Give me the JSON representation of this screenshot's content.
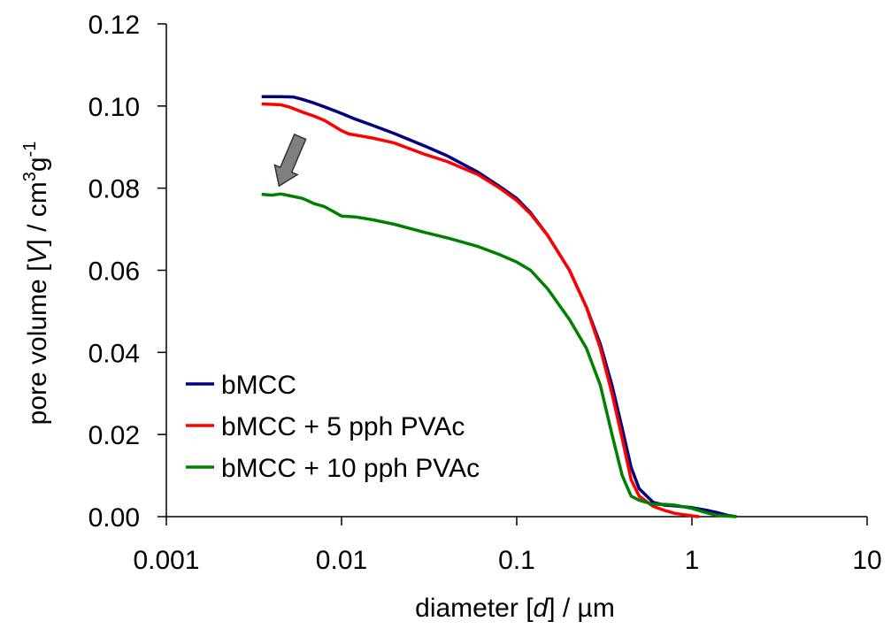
{
  "chart_data": {
    "type": "line",
    "xscale": "log",
    "xlim": [
      0.001,
      10
    ],
    "ylim": [
      0.0,
      0.12
    ],
    "grid": false,
    "x_ticks": [
      0.001,
      0.01,
      0.1,
      1,
      10
    ],
    "x_tick_labels": [
      "0.001",
      "0.01",
      "0.1",
      "1",
      "10"
    ],
    "y_ticks": [
      0.0,
      0.02,
      0.04,
      0.06,
      0.08,
      0.1,
      0.12
    ],
    "y_tick_labels": [
      "0.00",
      "0.02",
      "0.04",
      "0.06",
      "0.08",
      "0.10",
      "0.12"
    ],
    "xlabel": {
      "prefix": "diameter [",
      "var": "d",
      "suffix": "] / µm"
    },
    "ylabel": {
      "prefix": "pore volume [",
      "var": "V",
      "mid": "] / cm",
      "sup1": "3",
      "base2": "g",
      "sup2": "-1"
    },
    "legend_position": "lower-left",
    "annotation": {
      "type": "arrow",
      "description": "grey arrow pointing down-left from bMCC curve to 10 pph curve",
      "color": "#808080",
      "from": [
        0.0058,
        0.0925
      ],
      "to": [
        0.0044,
        0.0805
      ]
    },
    "series": [
      {
        "name": "bMCC",
        "color": "#000080",
        "points": [
          [
            0.0035,
            0.1023
          ],
          [
            0.0045,
            0.1023
          ],
          [
            0.0053,
            0.1022
          ],
          [
            0.006,
            0.1016
          ],
          [
            0.007,
            0.1007
          ],
          [
            0.008,
            0.0998
          ],
          [
            0.01,
            0.0982
          ],
          [
            0.012,
            0.0968
          ],
          [
            0.015,
            0.0953
          ],
          [
            0.02,
            0.0933
          ],
          [
            0.03,
            0.0902
          ],
          [
            0.04,
            0.0879
          ],
          [
            0.06,
            0.0839
          ],
          [
            0.08,
            0.0804
          ],
          [
            0.1,
            0.0775
          ],
          [
            0.12,
            0.074
          ],
          [
            0.15,
            0.0685
          ],
          [
            0.2,
            0.06
          ],
          [
            0.25,
            0.051
          ],
          [
            0.3,
            0.042
          ],
          [
            0.35,
            0.032
          ],
          [
            0.4,
            0.0215
          ],
          [
            0.45,
            0.012
          ],
          [
            0.5,
            0.0068
          ],
          [
            0.6,
            0.0035
          ],
          [
            0.7,
            0.0028
          ],
          [
            0.8,
            0.0026
          ],
          [
            1.0,
            0.0022
          ],
          [
            1.2,
            0.0016
          ],
          [
            1.4,
            0.001
          ],
          [
            1.6,
            0.0003
          ],
          [
            1.8,
            0.0
          ]
        ]
      },
      {
        "name": "bMCC + 5 pph PVAc",
        "color": "#FF0000",
        "points": [
          [
            0.0035,
            0.1005
          ],
          [
            0.0045,
            0.1003
          ],
          [
            0.005,
            0.0998
          ],
          [
            0.006,
            0.0985
          ],
          [
            0.007,
            0.0975
          ],
          [
            0.008,
            0.0965
          ],
          [
            0.01,
            0.094
          ],
          [
            0.011,
            0.0932
          ],
          [
            0.015,
            0.0922
          ],
          [
            0.02,
            0.091
          ],
          [
            0.03,
            0.0882
          ],
          [
            0.04,
            0.0865
          ],
          [
            0.06,
            0.0833
          ],
          [
            0.08,
            0.08
          ],
          [
            0.1,
            0.077
          ],
          [
            0.12,
            0.0737
          ],
          [
            0.15,
            0.0685
          ],
          [
            0.2,
            0.06
          ],
          [
            0.25,
            0.051
          ],
          [
            0.3,
            0.041
          ],
          [
            0.35,
            0.03
          ],
          [
            0.4,
            0.019
          ],
          [
            0.45,
            0.009
          ],
          [
            0.5,
            0.005
          ],
          [
            0.6,
            0.0025
          ],
          [
            0.7,
            0.0015
          ],
          [
            0.8,
            0.0008
          ],
          [
            1.0,
            0.0002
          ],
          [
            1.1,
            0.0
          ]
        ]
      },
      {
        "name": "bMCC + 10 pph PVAc",
        "color": "#008000",
        "points": [
          [
            0.0035,
            0.0785
          ],
          [
            0.004,
            0.0783
          ],
          [
            0.0045,
            0.0786
          ],
          [
            0.005,
            0.0782
          ],
          [
            0.006,
            0.0775
          ],
          [
            0.007,
            0.0762
          ],
          [
            0.008,
            0.0755
          ],
          [
            0.01,
            0.0732
          ],
          [
            0.012,
            0.073
          ],
          [
            0.015,
            0.0723
          ],
          [
            0.02,
            0.0712
          ],
          [
            0.03,
            0.0692
          ],
          [
            0.04,
            0.0679
          ],
          [
            0.06,
            0.0658
          ],
          [
            0.08,
            0.0638
          ],
          [
            0.1,
            0.062
          ],
          [
            0.12,
            0.06
          ],
          [
            0.15,
            0.0555
          ],
          [
            0.2,
            0.048
          ],
          [
            0.25,
            0.041
          ],
          [
            0.3,
            0.032
          ],
          [
            0.35,
            0.02
          ],
          [
            0.4,
            0.01
          ],
          [
            0.45,
            0.005
          ],
          [
            0.5,
            0.004
          ],
          [
            0.6,
            0.003
          ],
          [
            0.7,
            0.003
          ],
          [
            0.8,
            0.0028
          ],
          [
            1.0,
            0.002
          ],
          [
            1.2,
            0.001
          ],
          [
            1.4,
            0.0003
          ],
          [
            1.8,
            0.0
          ]
        ]
      }
    ]
  }
}
